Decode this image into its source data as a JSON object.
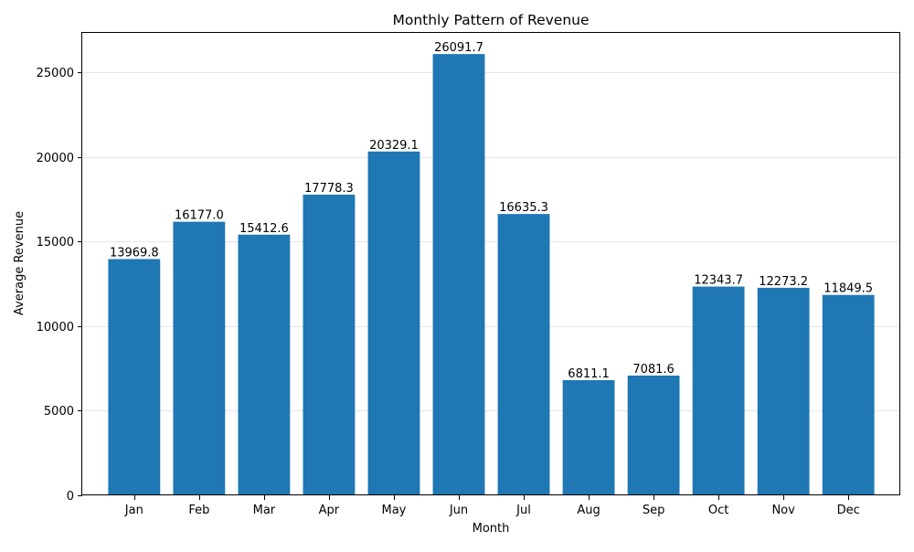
{
  "chart_data": {
    "type": "bar",
    "title": "Monthly Pattern of Revenue",
    "xlabel": "Month",
    "ylabel": "Average Revenue",
    "categories": [
      "Jan",
      "Feb",
      "Mar",
      "Apr",
      "May",
      "Jun",
      "Jul",
      "Aug",
      "Sep",
      "Oct",
      "Nov",
      "Dec"
    ],
    "values": [
      13969.8,
      16177.0,
      15412.6,
      17778.3,
      20329.1,
      26091.7,
      16635.3,
      6811.1,
      7081.6,
      12343.7,
      12273.2,
      11849.5
    ],
    "value_labels": [
      "13969.8",
      "16177.0",
      "15412.6",
      "17778.3",
      "20329.1",
      "26091.7",
      "16635.3",
      "6811.1",
      "7081.6",
      "12343.7",
      "12273.2",
      "11849.5"
    ],
    "yticks": [
      0,
      5000,
      10000,
      15000,
      20000,
      25000
    ],
    "ytick_labels": [
      "0",
      "5000",
      "10000",
      "15000",
      "20000",
      "25000"
    ],
    "ylim": [
      0,
      27396.3
    ],
    "grid": "y-axis, light",
    "legend": "none",
    "bar_color": "#1f77b4",
    "grid_color": "#e6e6e6"
  }
}
